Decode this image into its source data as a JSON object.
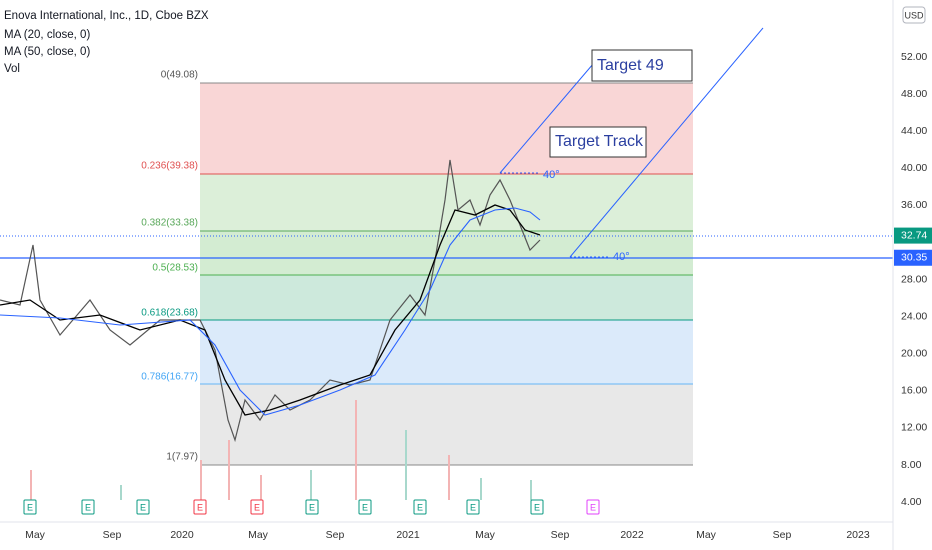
{
  "header": {
    "title": "Enova International, Inc., 1D, Cboe BZX",
    "indicators": [
      "MA (20, close, 0)",
      "MA (50, close, 0)",
      "Vol"
    ]
  },
  "currency": "USD",
  "price_axis": [
    {
      "value": 52,
      "label": "52.00"
    },
    {
      "value": 48,
      "label": "48.00"
    },
    {
      "value": 44,
      "label": "44.00"
    },
    {
      "value": 40,
      "label": "40.00"
    },
    {
      "value": 36,
      "label": "36.00"
    },
    {
      "value": 28,
      "label": "28.00"
    },
    {
      "value": 24,
      "label": "24.00"
    },
    {
      "value": 20,
      "label": "20.00"
    },
    {
      "value": 16,
      "label": "16.00"
    },
    {
      "value": 12,
      "label": "12.00"
    },
    {
      "value": 8,
      "label": "8.00"
    },
    {
      "value": 4,
      "label": "4.00"
    }
  ],
  "price_tags": [
    {
      "value": 32.74,
      "label": "32.74"
    },
    {
      "value": 30.35,
      "label": "30.35"
    }
  ],
  "time_axis": [
    "May",
    "Sep",
    "2020",
    "May",
    "Sep",
    "2021",
    "May",
    "Sep",
    "2022",
    "May",
    "Sep",
    "2023"
  ],
  "fib_levels": [
    "0(49.08)",
    "0.236(39.38)",
    "0.382(33.38)",
    "0.5(28.53)",
    "0.618(23.68)",
    "0.786(16.77)",
    "1(7.97)"
  ],
  "annotations": [
    "Target 49",
    "Target Track"
  ],
  "angles": [
    "40°",
    "40°"
  ],
  "earnings": [
    "E",
    "E",
    "E",
    "E",
    "E",
    "E",
    "E",
    "E",
    "E",
    "E",
    "E"
  ]
}
